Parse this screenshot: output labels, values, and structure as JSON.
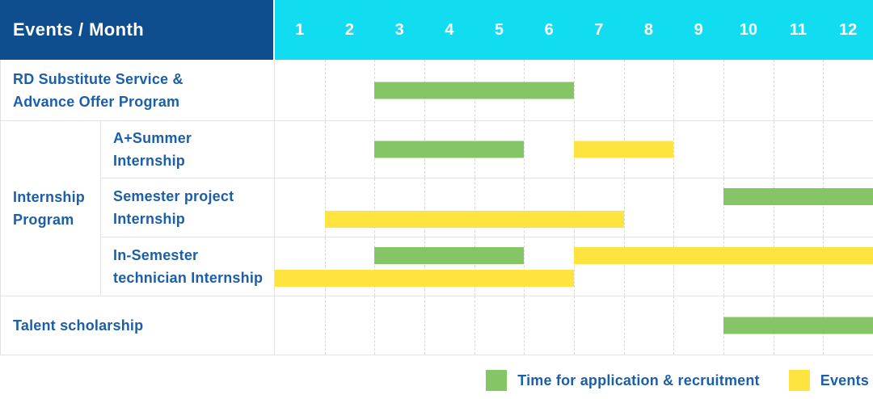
{
  "header": {
    "title": "Events / Month",
    "months": [
      "1",
      "2",
      "3",
      "4",
      "5",
      "6",
      "7",
      "8",
      "9",
      "10",
      "11",
      "12"
    ]
  },
  "group": {
    "label": "Internship\nProgram"
  },
  "rows": [
    {
      "label": "RD Substitute Service &\nAdvance Offer Program",
      "bars": [
        {
          "kind": "application",
          "start": 3,
          "end": 6,
          "lane": "center"
        }
      ]
    },
    {
      "label": "A+Summer\nInternship",
      "bars": [
        {
          "kind": "application",
          "start": 3,
          "end": 5,
          "lane": "center"
        },
        {
          "kind": "event",
          "start": 7,
          "end": 8,
          "lane": "center"
        }
      ]
    },
    {
      "label": "Semester project\nInternship",
      "bars": [
        {
          "kind": "application",
          "start": 10,
          "end": 12,
          "lane": "top"
        },
        {
          "kind": "event",
          "start": 2,
          "end": 7,
          "lane": "bottom"
        }
      ]
    },
    {
      "label": "In-Semester\ntechnician Internship",
      "bars": [
        {
          "kind": "application",
          "start": 3,
          "end": 5,
          "lane": "top"
        },
        {
          "kind": "event",
          "start": 7,
          "end": 12,
          "lane": "top"
        },
        {
          "kind": "event",
          "start": 1,
          "end": 6,
          "lane": "bottom"
        }
      ]
    },
    {
      "label": "Talent scholarship",
      "bars": [
        {
          "kind": "application",
          "start": 10,
          "end": 12,
          "lane": "center"
        }
      ]
    }
  ],
  "legend": {
    "items": [
      {
        "kind": "application",
        "label": "Time for application & recruitment",
        "color": "#85c566"
      },
      {
        "kind": "event",
        "label": "Events",
        "color": "#ffe33f"
      }
    ]
  },
  "colors": {
    "header_bg": "#0e4e8e",
    "months_bg": "#12dcf0",
    "header_text": "#ffffff",
    "label_text": "#1b5fa8",
    "application_green": "#85c566",
    "event_yellow": "#ffe33f",
    "table_border": "#e3e3e3",
    "month_gridline": "#d8d8d8"
  },
  "chart_data": {
    "type": "bar",
    "subtype": "gantt",
    "title": "Events / Month",
    "xlabel": "Month",
    "x_categories": [
      1,
      2,
      3,
      4,
      5,
      6,
      7,
      8,
      9,
      10,
      11,
      12
    ],
    "xlim": [
      1,
      12
    ],
    "grid": "dashed-vertical-per-month",
    "legend_position": "bottom-right",
    "series_legend": [
      "Time for application & recruitment",
      "Events"
    ],
    "rows": [
      {
        "group": "",
        "label": "RD Substitute Service & Advance Offer Program",
        "segments": [
          {
            "series": "Time for application & recruitment",
            "start_month": 3,
            "end_month": 6
          }
        ]
      },
      {
        "group": "Internship Program",
        "label": "A+Summer Internship",
        "segments": [
          {
            "series": "Time for application & recruitment",
            "start_month": 3,
            "end_month": 5
          },
          {
            "series": "Events",
            "start_month": 7,
            "end_month": 8
          }
        ]
      },
      {
        "group": "Internship Program",
        "label": "Semester project Internship",
        "segments": [
          {
            "series": "Time for application & recruitment",
            "start_month": 10,
            "end_month": 12
          },
          {
            "series": "Events",
            "start_month": 2,
            "end_month": 7
          }
        ]
      },
      {
        "group": "Internship Program",
        "label": "In-Semester technician Internship",
        "segments": [
          {
            "series": "Time for application & recruitment",
            "start_month": 3,
            "end_month": 5
          },
          {
            "series": "Events",
            "start_month": 7,
            "end_month": 12
          },
          {
            "series": "Events",
            "start_month": 1,
            "end_month": 6
          }
        ]
      },
      {
        "group": "",
        "label": "Talent scholarship",
        "segments": [
          {
            "series": "Time for application & recruitment",
            "start_month": 10,
            "end_month": 12
          }
        ]
      }
    ]
  }
}
